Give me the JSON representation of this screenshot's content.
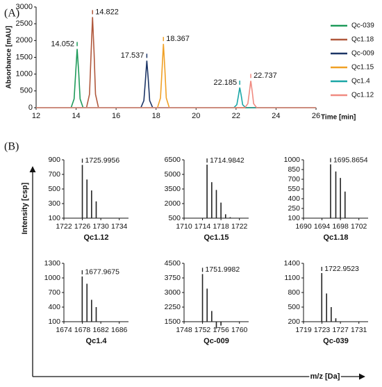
{
  "figure": {
    "panel_a": "(A)",
    "panel_b": "(B)",
    "ylabel_b": "Intensity [csp]",
    "xlabel_b": "m/z [Da]"
  },
  "chart_data": [
    {
      "type": "line",
      "xlabel": "Time [min]",
      "ylabel": "Absorbance [mAU]",
      "xlim": [
        12,
        26
      ],
      "xticks": [
        12,
        14,
        16,
        18,
        20,
        22,
        24,
        26
      ],
      "ylim": [
        0,
        3000
      ],
      "yticks": [
        0,
        500,
        1000,
        1500,
        2000,
        2500,
        3000
      ],
      "series": [
        {
          "name": "Qc-039",
          "color": "#1e9a5a",
          "x": [
            12,
            13.75,
            13.9,
            13.98,
            14.052,
            14.13,
            14.2,
            14.35,
            26
          ],
          "values": [
            0,
            0,
            260,
            1050,
            1750,
            1050,
            260,
            0,
            0
          ]
        },
        {
          "name": "Qc1.18",
          "color": "#b0583c",
          "x": [
            12,
            14.52,
            14.67,
            14.75,
            14.822,
            14.9,
            14.97,
            15.12,
            26
          ],
          "values": [
            0,
            0,
            400,
            1620,
            2700,
            1620,
            400,
            0,
            0
          ]
        },
        {
          "name": "Qc-009",
          "color": "#1c3566",
          "x": [
            12,
            17.24,
            17.39,
            17.47,
            17.537,
            17.61,
            17.68,
            17.83,
            26
          ],
          "values": [
            0,
            0,
            210,
            840,
            1400,
            840,
            210,
            0,
            0
          ]
        },
        {
          "name": "Qc1.15",
          "color": "#f0a025",
          "x": [
            12,
            18.07,
            18.22,
            18.3,
            18.367,
            18.44,
            18.51,
            18.66,
            26
          ],
          "values": [
            0,
            0,
            290,
            1140,
            1900,
            1140,
            290,
            0,
            0
          ]
        },
        {
          "name": "Qc1.4",
          "color": "#1aa6a6",
          "x": [
            12,
            21.89,
            22.04,
            22.12,
            22.185,
            22.26,
            22.33,
            22.48,
            26
          ],
          "values": [
            0,
            0,
            90,
            360,
            600,
            360,
            90,
            0,
            0
          ]
        },
        {
          "name": "Qc1.12",
          "color": "#f08a80",
          "x": [
            12,
            22.44,
            22.59,
            22.67,
            22.737,
            22.81,
            22.88,
            23.03,
            26
          ],
          "values": [
            0,
            0,
            120,
            480,
            800,
            480,
            120,
            0,
            0
          ]
        }
      ]
    },
    {
      "type": "bar",
      "title": "Qc1.12",
      "xlim": [
        1722,
        1736
      ],
      "xticks": [
        1722,
        1726,
        1730,
        1734
      ],
      "ylim": [
        100,
        900
      ],
      "yticks": [
        100,
        300,
        500,
        700,
        900
      ],
      "x": [
        1725.9956,
        1727,
        1728,
        1729
      ],
      "values": [
        830,
        630,
        480,
        330
      ]
    },
    {
      "type": "bar",
      "title": "Qc1.15",
      "xlim": [
        1710,
        1724
      ],
      "xticks": [
        1710,
        1714,
        1718,
        1722
      ],
      "ylim": [
        500,
        6500
      ],
      "yticks": [
        500,
        2000,
        3500,
        5000,
        6500
      ],
      "x": [
        1714.9842,
        1716,
        1717,
        1718,
        1719,
        1720
      ],
      "values": [
        6000,
        4200,
        3400,
        2100,
        900,
        600
      ]
    },
    {
      "type": "bar",
      "title": "Qc1.18",
      "xlim": [
        1690,
        1704
      ],
      "xticks": [
        1690,
        1694,
        1698,
        1702
      ],
      "ylim": [
        100,
        1000
      ],
      "yticks": [
        100,
        250,
        400,
        550,
        700,
        850,
        1000
      ],
      "x": [
        1695.8654,
        1697,
        1698,
        1699
      ],
      "values": [
        930,
        820,
        720,
        510
      ]
    },
    {
      "type": "bar",
      "title": "Qc1.4",
      "xlim": [
        1674,
        1688
      ],
      "xticks": [
        1674,
        1678,
        1682,
        1686
      ],
      "ylim": [
        100,
        1300
      ],
      "yticks": [
        100,
        400,
        700,
        1000,
        1300
      ],
      "x": [
        1677.9675,
        1679,
        1680,
        1681
      ],
      "values": [
        1030,
        880,
        550,
        400
      ]
    },
    {
      "type": "bar",
      "title": "Qc-009",
      "xlim": [
        1748,
        1762
      ],
      "xticks": [
        1748,
        1752,
        1756,
        1760
      ],
      "ylim": [
        1500,
        4500
      ],
      "yticks": [
        1500,
        2250,
        3000,
        3750,
        4500
      ],
      "x": [
        1751.9982,
        1753,
        1754,
        1755,
        1756
      ],
      "values": [
        3950,
        3200,
        2050,
        1150,
        1300
      ]
    },
    {
      "type": "bar",
      "title": "Qc-039",
      "xlim": [
        1719,
        1733
      ],
      "xticks": [
        1719,
        1723,
        1727,
        1731
      ],
      "ylim": [
        200,
        1400
      ],
      "yticks": [
        200,
        500,
        800,
        1100,
        1400
      ],
      "x": [
        1722.9523,
        1724,
        1725,
        1726
      ],
      "values": [
        1200,
        780,
        500,
        270
      ]
    }
  ]
}
